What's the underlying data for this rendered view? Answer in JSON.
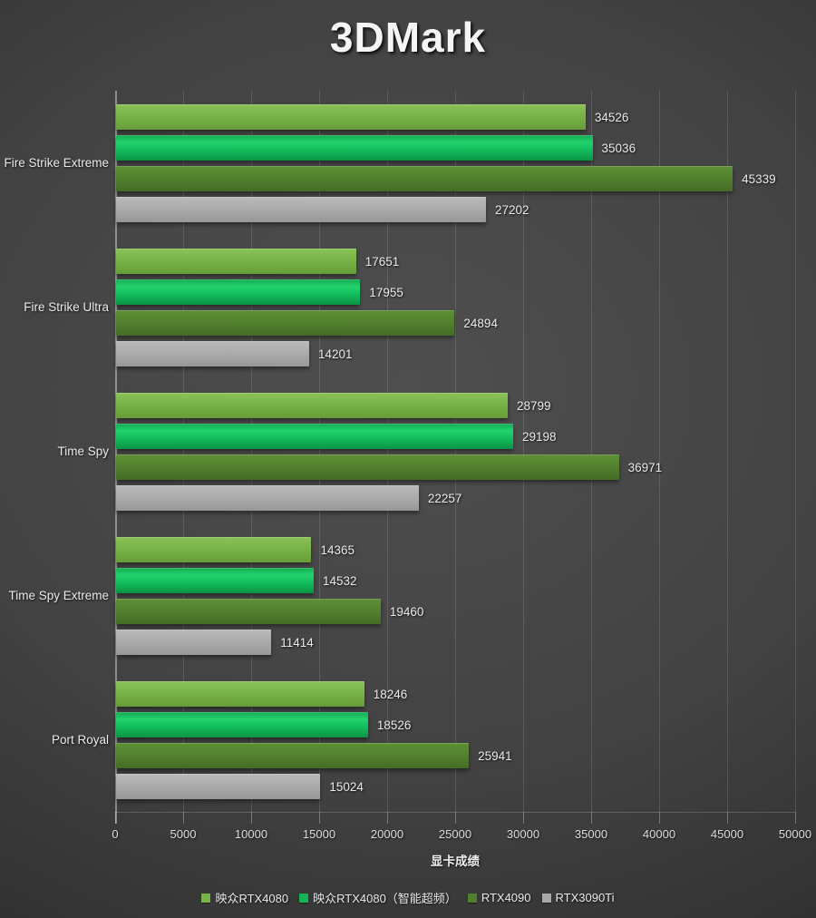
{
  "title": "3DMark",
  "chart_data": {
    "type": "bar",
    "orientation": "horizontal",
    "title": "3DMark",
    "xlabel": "显卡成绩",
    "ylabel": "",
    "xlim": [
      0,
      50000
    ],
    "xticks": [
      0,
      5000,
      10000,
      15000,
      20000,
      25000,
      30000,
      35000,
      40000,
      45000,
      50000
    ],
    "grid": true,
    "legend_position": "bottom",
    "categories": [
      "Fire Strike Extreme",
      "Fire Strike Ultra",
      "Time Spy",
      "Time Spy Extreme",
      "Port Royal"
    ],
    "series": [
      {
        "name": "映众RTX4080",
        "color": "#79b347",
        "values": [
          34526,
          17651,
          28799,
          14365,
          18246
        ]
      },
      {
        "name": "映众RTX4080（智能超频）",
        "color": "#14b556",
        "values": [
          35036,
          17955,
          29198,
          14532,
          18526
        ]
      },
      {
        "name": "RTX4090",
        "color": "#53802f",
        "values": [
          45339,
          24894,
          36971,
          19460,
          25941
        ]
      },
      {
        "name": "RTX3090Ti",
        "color": "#a9a9a9",
        "values": [
          27202,
          14201,
          22257,
          11414,
          15024
        ]
      }
    ]
  }
}
